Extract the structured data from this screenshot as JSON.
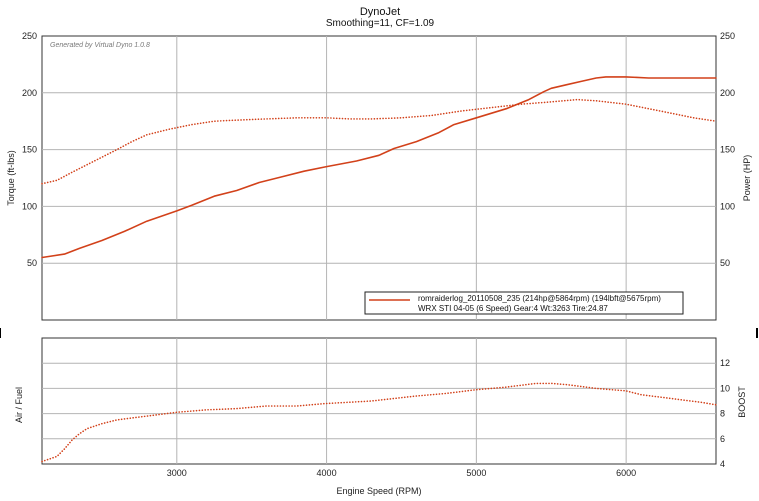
{
  "title": "DynoJet",
  "subtitle": "Smoothing=11, CF=1.09",
  "watermark": "Generated by Virtual Dyno 1.0.8",
  "legend": {
    "line1": "romraiderlog_20110508_235 (214hp@5864rpm) (194lbft@5675rpm)",
    "line2": "WRX STI 04-05 (6 Speed) Gear:4 Wt:3263 Tire:24.87"
  },
  "colors": {
    "curve": "#d2411a",
    "grid": "#b4b4b4",
    "frame": "#333333"
  },
  "chart_data": [
    {
      "type": "line",
      "xlabel": "",
      "ylabel": "Torque (ft-lbs)",
      "ylabel_right": "Power (HP)",
      "xlim": [
        2100,
        6600
      ],
      "ylim": [
        0,
        250
      ],
      "x_ticks": [
        3000,
        4000,
        5000,
        6000
      ],
      "y_ticks": [
        50,
        100,
        150,
        200,
        250
      ],
      "grid": true,
      "legend_position": "bottom-right",
      "series": [
        {
          "name": "romraiderlog_20110508_235 (214hp@5864rpm) (194lbft@5675rpm)",
          "style": "solid",
          "x": [
            2100,
            2250,
            2350,
            2500,
            2650,
            2800,
            3000,
            3100,
            3250,
            3400,
            3550,
            3700,
            3850,
            4000,
            4200,
            4350,
            4450,
            4600,
            4750,
            4850,
            5000,
            5200,
            5350,
            5450,
            5500,
            5600,
            5700,
            5800,
            5864,
            6000,
            6150,
            6300,
            6600
          ],
          "values": [
            55,
            58,
            63,
            70,
            78,
            87,
            96,
            101,
            109,
            114,
            121,
            126,
            131,
            135,
            140,
            145,
            151,
            157,
            165,
            172,
            178,
            186,
            194,
            201,
            204,
            207,
            210,
            213,
            214,
            214,
            213,
            213,
            213
          ]
        },
        {
          "name": "",
          "style": "dotted",
          "x": [
            2100,
            2200,
            2300,
            2450,
            2600,
            2700,
            2800,
            2950,
            3100,
            3250,
            3400,
            3600,
            3800,
            4000,
            4150,
            4300,
            4500,
            4700,
            4900,
            5100,
            5300,
            5500,
            5675,
            5800,
            6000,
            6150,
            6300,
            6450,
            6600
          ],
          "values": [
            120,
            123,
            130,
            140,
            150,
            157,
            163,
            168,
            172,
            175,
            176,
            177,
            178,
            178,
            177,
            177,
            178,
            180,
            184,
            187,
            190,
            192,
            194,
            193,
            190,
            186,
            182,
            178,
            175
          ]
        }
      ]
    },
    {
      "type": "line",
      "xlabel": "Engine Speed (RPM)",
      "ylabel": "Air / Fuel",
      "ylabel_right": "BOOST",
      "xlim": [
        2100,
        6600
      ],
      "ylim": [
        4,
        14
      ],
      "x_ticks": [
        3000,
        4000,
        5000,
        6000
      ],
      "y_ticks": [
        4,
        6,
        8,
        10,
        12
      ],
      "grid": true,
      "series": [
        {
          "name": "",
          "style": "dotted",
          "x": [
            2100,
            2150,
            2200,
            2250,
            2300,
            2350,
            2400,
            2500,
            2600,
            2800,
            3000,
            3200,
            3400,
            3600,
            3800,
            4000,
            4300,
            4600,
            4800,
            5000,
            5200,
            5400,
            5500,
            5600,
            5800,
            6000,
            6100,
            6300,
            6500,
            6600
          ],
          "values": [
            4.2,
            4.4,
            4.6,
            5.2,
            5.9,
            6.4,
            6.8,
            7.2,
            7.5,
            7.8,
            8.1,
            8.3,
            8.4,
            8.6,
            8.6,
            8.8,
            9.0,
            9.4,
            9.6,
            9.9,
            10.1,
            10.4,
            10.4,
            10.3,
            10.0,
            9.8,
            9.5,
            9.2,
            8.9,
            8.7
          ]
        }
      ]
    }
  ]
}
